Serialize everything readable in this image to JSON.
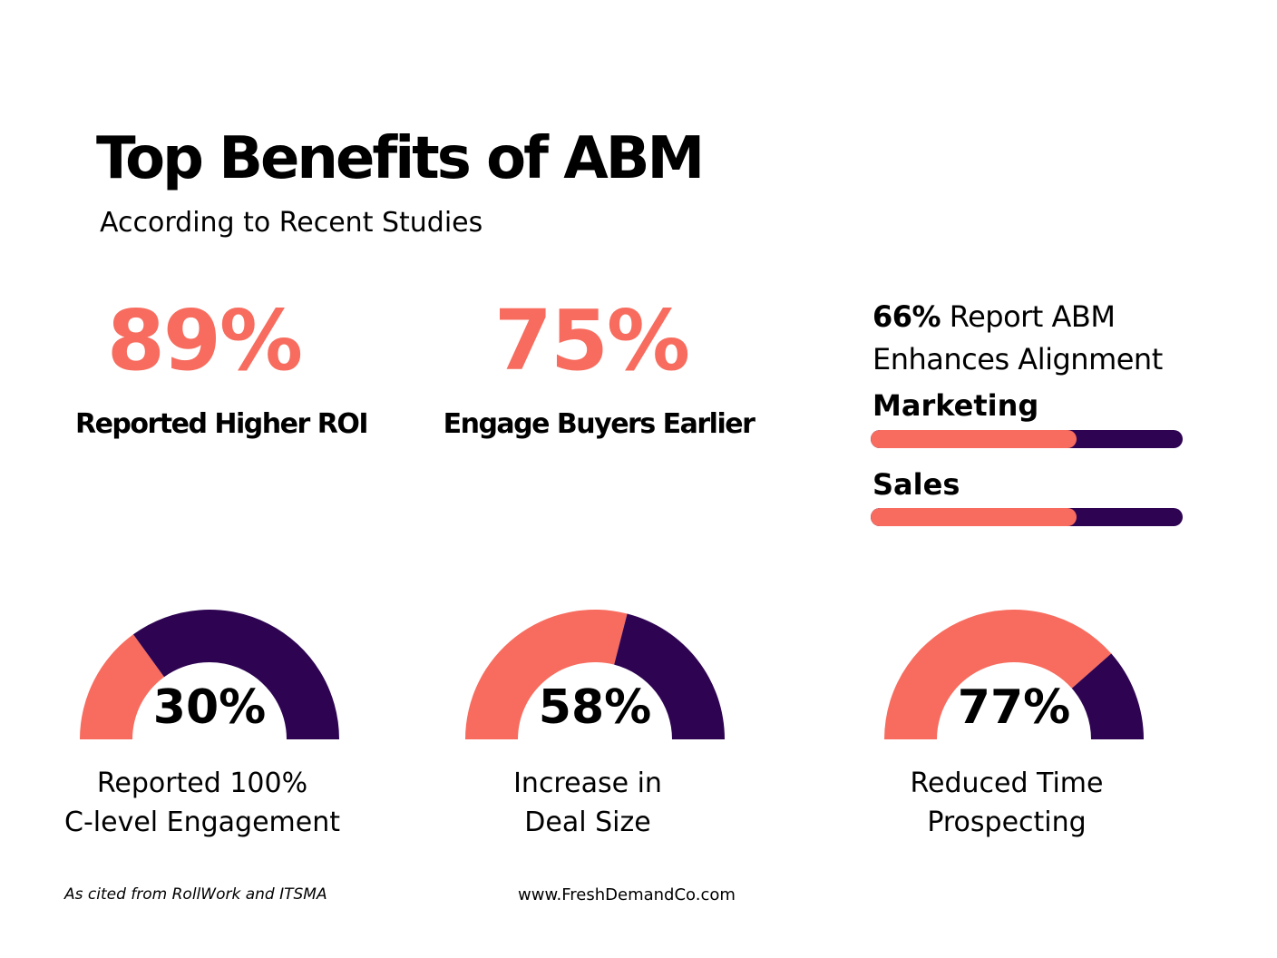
{
  "title": "Top Benefits of ABM",
  "subtitle": "According to Recent Studies",
  "colors": {
    "accent": "#F76C5E",
    "dark": "#2E0452"
  },
  "stats": [
    {
      "value": "89%",
      "label": "Reported Higher ROI"
    },
    {
      "value": "75%",
      "label": "Engage Buyers Earlier"
    }
  ],
  "alignment": {
    "value": "66%",
    "text_line1": "Report ABM",
    "text_line2": "Enhances Alignment"
  },
  "chart_data": [
    {
      "type": "bar",
      "categories": [
        "Marketing",
        "Sales"
      ],
      "values": [
        66,
        66
      ],
      "ylim": [
        0,
        100
      ]
    },
    {
      "type": "pie",
      "style": "semicircle-gauge",
      "gauges": [
        {
          "value": 30,
          "label": "30%",
          "caption_line1": "Reported 100%",
          "caption_line2": "C-level Engagement"
        },
        {
          "value": 58,
          "label": "58%",
          "caption_line1": "Increase in",
          "caption_line2": "Deal Size"
        },
        {
          "value": 77,
          "label": "77%",
          "caption_line1": "Reduced Time",
          "caption_line2": "Prospecting"
        }
      ]
    }
  ],
  "footer": {
    "source": "As cited from RollWork and ITSMA",
    "website": "www.FreshDemandCo.com"
  }
}
